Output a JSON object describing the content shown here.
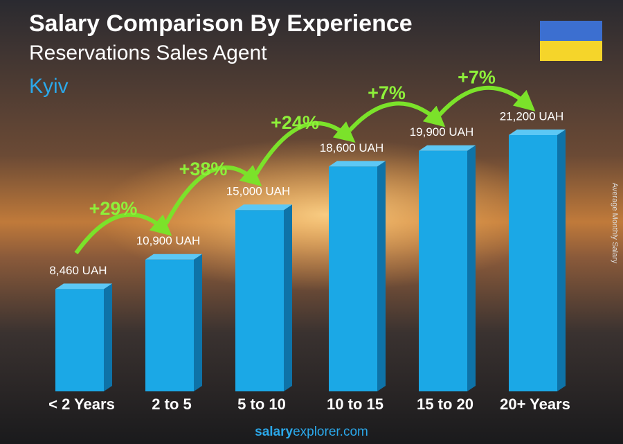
{
  "chart_data": {
    "type": "bar",
    "title": "Salary Comparison By Experience",
    "subtitle": "Reservations Sales Agent",
    "location": "Kyiv",
    "y_label": "Average Monthly Salary",
    "categories": [
      "< 2 Years",
      "2 to 5",
      "5 to 10",
      "10 to 15",
      "15 to 20",
      "20+ Years"
    ],
    "values": [
      8460,
      10900,
      15000,
      18600,
      19900,
      21200
    ],
    "value_labels": [
      "8,460 UAH",
      "10,900 UAH",
      "15,000 UAH",
      "18,600 UAH",
      "19,900 UAH",
      "21,200 UAH"
    ],
    "annotations": [
      "+29%",
      "+38%",
      "+24%",
      "+7%",
      "+7%"
    ],
    "color": "#1ba8e6",
    "footer": {
      "site": "salary",
      "domain": "explorer.com"
    }
  }
}
